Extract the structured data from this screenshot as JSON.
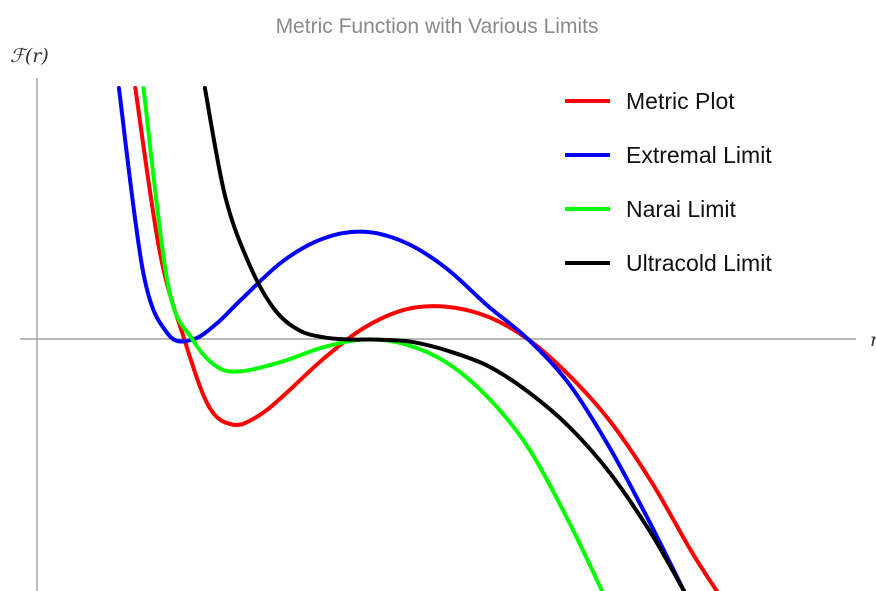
{
  "chart_data": {
    "type": "line",
    "title": "Metric Function with Various Limits",
    "xlabel": "r",
    "ylabel": "ℱ(r)",
    "xlim": [
      0,
      10
    ],
    "ylim": [
      -4.6,
      4.6
    ],
    "grid": false,
    "legend_position": "top-right",
    "series": [
      {
        "name": "Metric Plot",
        "color": "#ff0000",
        "x": [
          1.2,
          1.5,
          1.8,
          2.1,
          2.4,
          2.7,
          3.0,
          3.5,
          4.0,
          4.5,
          5.0,
          5.5,
          6.0,
          6.5,
          7.0,
          7.5,
          8.0,
          8.3
        ],
        "y": [
          4.6,
          1.6,
          0.0,
          -1.23,
          -1.56,
          -1.4,
          -1.04,
          -0.35,
          0.22,
          0.55,
          0.6,
          0.42,
          0.0,
          -0.66,
          -1.5,
          -2.6,
          -3.9,
          -4.6
        ]
      },
      {
        "name": "Extremal Limit",
        "color": "#0000ff",
        "x": [
          1.0,
          1.3,
          1.6,
          1.9,
          2.2,
          2.5,
          3.0,
          3.5,
          4.0,
          4.5,
          5.0,
          5.5,
          6.0,
          6.5,
          7.0,
          7.5,
          7.9
        ],
        "y": [
          4.6,
          1.2,
          0.1,
          0.0,
          0.3,
          0.74,
          1.43,
          1.85,
          1.97,
          1.77,
          1.3,
          0.62,
          0.0,
          -0.82,
          -2.0,
          -3.4,
          -4.6
        ]
      },
      {
        "name": "Narai Limit",
        "color": "#00ff00",
        "x": [
          1.3,
          1.6,
          1.9,
          2.2,
          2.5,
          3.0,
          3.5,
          4.0,
          4.5,
          5.0,
          5.5,
          6.0,
          6.5,
          6.9
        ],
        "y": [
          4.6,
          1.0,
          0.0,
          -0.5,
          -0.58,
          -0.4,
          -0.14,
          0.0,
          -0.09,
          -0.42,
          -1.05,
          -1.98,
          -3.35,
          -4.6
        ]
      },
      {
        "name": "Ultracold Limit",
        "color": "#000000",
        "x": [
          2.05,
          2.3,
          2.6,
          2.9,
          3.2,
          3.5,
          3.8,
          4.0,
          4.3,
          4.6,
          5.0,
          5.5,
          6.0,
          6.5,
          7.0,
          7.5,
          7.9
        ],
        "y": [
          4.6,
          2.6,
          1.35,
          0.55,
          0.17,
          0.04,
          0.0,
          0.0,
          -0.01,
          -0.05,
          -0.2,
          -0.48,
          -0.96,
          -1.6,
          -2.45,
          -3.55,
          -4.6
        ]
      }
    ]
  }
}
